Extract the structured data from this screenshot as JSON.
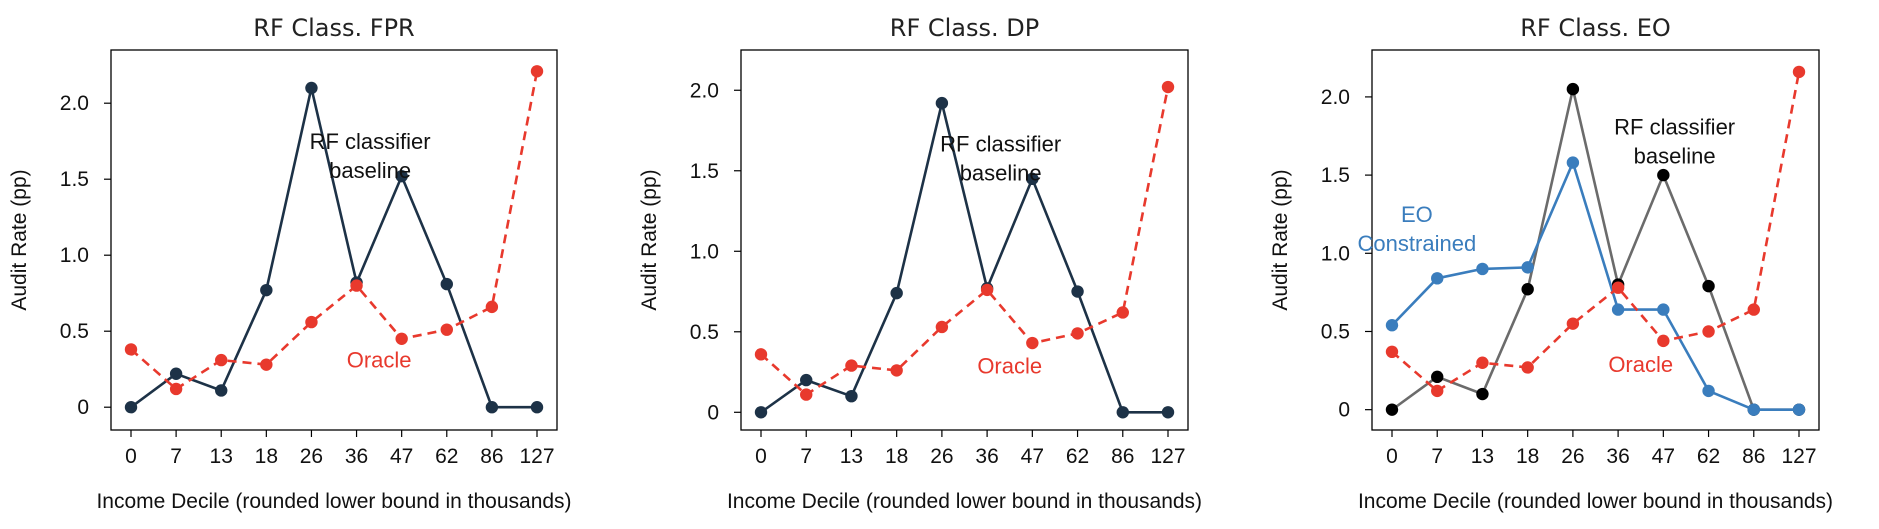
{
  "chart_data": [
    {
      "type": "line",
      "title": "RF Class. FPR",
      "xlabel": "Income Decile (rounded lower bound in thousands)",
      "ylabel": "Audit Rate (pp)",
      "categories": [
        "0",
        "7",
        "13",
        "18",
        "26",
        "36",
        "47",
        "62",
        "86",
        "127"
      ],
      "yticks": [
        {
          "value": 0,
          "label": "0"
        },
        {
          "value": 0.5,
          "label": "0.5"
        },
        {
          "value": 1.0,
          "label": "1.0"
        },
        {
          "value": 1.5,
          "label": "1.5"
        },
        {
          "value": 2.0,
          "label": "2.0"
        }
      ],
      "ylim": [
        -0.15,
        2.35
      ],
      "grid": false,
      "series": [
        {
          "values": [
            0.0,
            0.22,
            0.11,
            0.77,
            2.1,
            0.82,
            1.52,
            0.81,
            0.0,
            0.0
          ],
          "color": "#1d3247",
          "dashed": false
        },
        {
          "values": [
            0.38,
            0.12,
            0.31,
            0.28,
            0.56,
            0.8,
            0.45,
            0.51,
            0.66,
            2.21
          ],
          "color": "#e8392d",
          "dashed": true
        }
      ],
      "annotations": [
        {
          "lines": [
            "RF classifier",
            "baseline"
          ],
          "color": "#111111",
          "x": 5.3,
          "y": 1.7
        },
        {
          "lines": [
            "Oracle"
          ],
          "color": "#e8392d",
          "x": 5.5,
          "y": 0.26
        }
      ]
    },
    {
      "type": "line",
      "title": "RF Class. DP",
      "xlabel": "Income Decile (rounded lower bound in thousands)",
      "ylabel": "Audit Rate (pp)",
      "categories": [
        "0",
        "7",
        "13",
        "18",
        "26",
        "36",
        "47",
        "62",
        "86",
        "127"
      ],
      "yticks": [
        {
          "value": 0,
          "label": "0"
        },
        {
          "value": 0.5,
          "label": "0.5"
        },
        {
          "value": 1.0,
          "label": "1.0"
        },
        {
          "value": 1.5,
          "label": "1.5"
        },
        {
          "value": 2.0,
          "label": "2.0"
        }
      ],
      "ylim": [
        -0.11,
        2.25
      ],
      "grid": false,
      "series": [
        {
          "values": [
            0.0,
            0.2,
            0.1,
            0.74,
            1.92,
            0.77,
            1.45,
            0.75,
            0.0,
            0.0
          ],
          "color": "#1d3247",
          "dashed": false
        },
        {
          "values": [
            0.36,
            0.11,
            0.29,
            0.26,
            0.53,
            0.76,
            0.43,
            0.49,
            0.62,
            2.02
          ],
          "color": "#e8392d",
          "dashed": true
        }
      ],
      "annotations": [
        {
          "lines": [
            "RF classifier",
            "baseline"
          ],
          "color": "#111111",
          "x": 5.3,
          "y": 1.62
        },
        {
          "lines": [
            "Oracle"
          ],
          "color": "#e8392d",
          "x": 5.5,
          "y": 0.24
        }
      ]
    },
    {
      "type": "line",
      "title": "RF Class. EO",
      "xlabel": "Income Decile (rounded lower bound in thousands)",
      "ylabel": "Audit Rate (pp)",
      "categories": [
        "0",
        "7",
        "13",
        "18",
        "26",
        "36",
        "47",
        "62",
        "86",
        "127"
      ],
      "yticks": [
        {
          "value": 0,
          "label": "0"
        },
        {
          "value": 0.5,
          "label": "0.5"
        },
        {
          "value": 1.0,
          "label": "1.0"
        },
        {
          "value": 1.5,
          "label": "1.5"
        },
        {
          "value": 2.0,
          "label": "2.0"
        }
      ],
      "ylim": [
        -0.13,
        2.3
      ],
      "grid": false,
      "series": [
        {
          "values": [
            0.0,
            0.21,
            0.1,
            0.77,
            2.05,
            0.8,
            1.5,
            0.79,
            0.0,
            0.0
          ],
          "color": "#6b6b6b",
          "marker_color": "#000000",
          "dashed": false
        },
        {
          "values": [
            0.54,
            0.84,
            0.9,
            0.91,
            1.58,
            0.64,
            0.64,
            0.12,
            0.0,
            0.0
          ],
          "color": "#3a7dbd",
          "dashed": false
        },
        {
          "values": [
            0.37,
            0.12,
            0.3,
            0.27,
            0.55,
            0.78,
            0.44,
            0.5,
            0.64,
            2.16
          ],
          "color": "#e8392d",
          "dashed": true
        }
      ],
      "annotations": [
        {
          "lines": [
            "RF classifier",
            "baseline"
          ],
          "color": "#111111",
          "x": 6.25,
          "y": 1.76
        },
        {
          "lines": [
            "EO",
            "Constrained"
          ],
          "color": "#3a7dbd",
          "x": 0.55,
          "y": 1.2
        },
        {
          "lines": [
            "Oracle"
          ],
          "color": "#e8392d",
          "x": 5.5,
          "y": 0.24
        }
      ]
    }
  ]
}
